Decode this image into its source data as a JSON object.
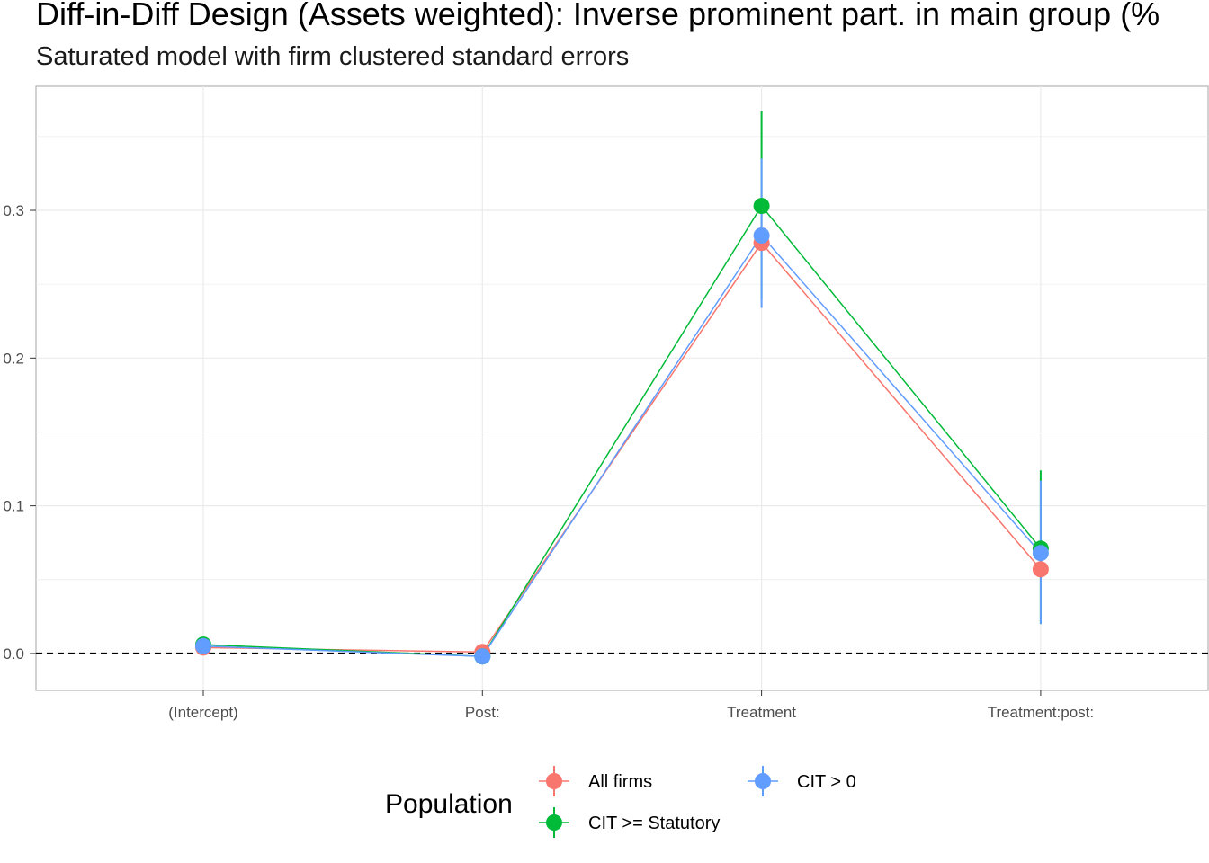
{
  "chart_data": {
    "type": "scatter",
    "title": "Diff-in-Diff Design (Assets weighted): Inverse prominent part. in main group (%",
    "subtitle": "Saturated model with firm clustered standard errors",
    "xlabel": "",
    "ylabel": "",
    "categories": [
      "(Intercept)",
      "Post:",
      "Treatment",
      "Treatment:post:"
    ],
    "y_ticks": [
      0.0,
      0.1,
      0.2,
      0.3
    ],
    "y_tick_labels": [
      "0.0",
      "0.1",
      "0.2",
      "0.3"
    ],
    "ylim": [
      -0.025,
      0.384
    ],
    "grid": true,
    "reference_line": {
      "y": 0,
      "style": "dashed",
      "color": "#000000"
    },
    "legend": {
      "title": "Population",
      "position": "bottom"
    },
    "series": [
      {
        "name": "All firms",
        "color": "#F8766D",
        "values": [
          0.004,
          0.001,
          0.278,
          0.057
        ],
        "lower": [
          0.002,
          -0.001,
          0.278,
          0.057
        ],
        "upper": [
          0.006,
          0.003,
          0.278,
          0.057
        ]
      },
      {
        "name": "CIT >= Statutory",
        "color": "#00BA38",
        "values": [
          0.006,
          -0.002,
          0.303,
          0.071
        ],
        "lower": [
          0.004,
          -0.004,
          0.24,
          0.02
        ],
        "upper": [
          0.008,
          0.0,
          0.367,
          0.124
        ]
      },
      {
        "name": "CIT > 0",
        "color": "#619CFF",
        "values": [
          0.005,
          -0.002,
          0.283,
          0.068
        ],
        "lower": [
          0.003,
          -0.004,
          0.234,
          0.02
        ],
        "upper": [
          0.007,
          0.0,
          0.335,
          0.117
        ]
      }
    ]
  }
}
